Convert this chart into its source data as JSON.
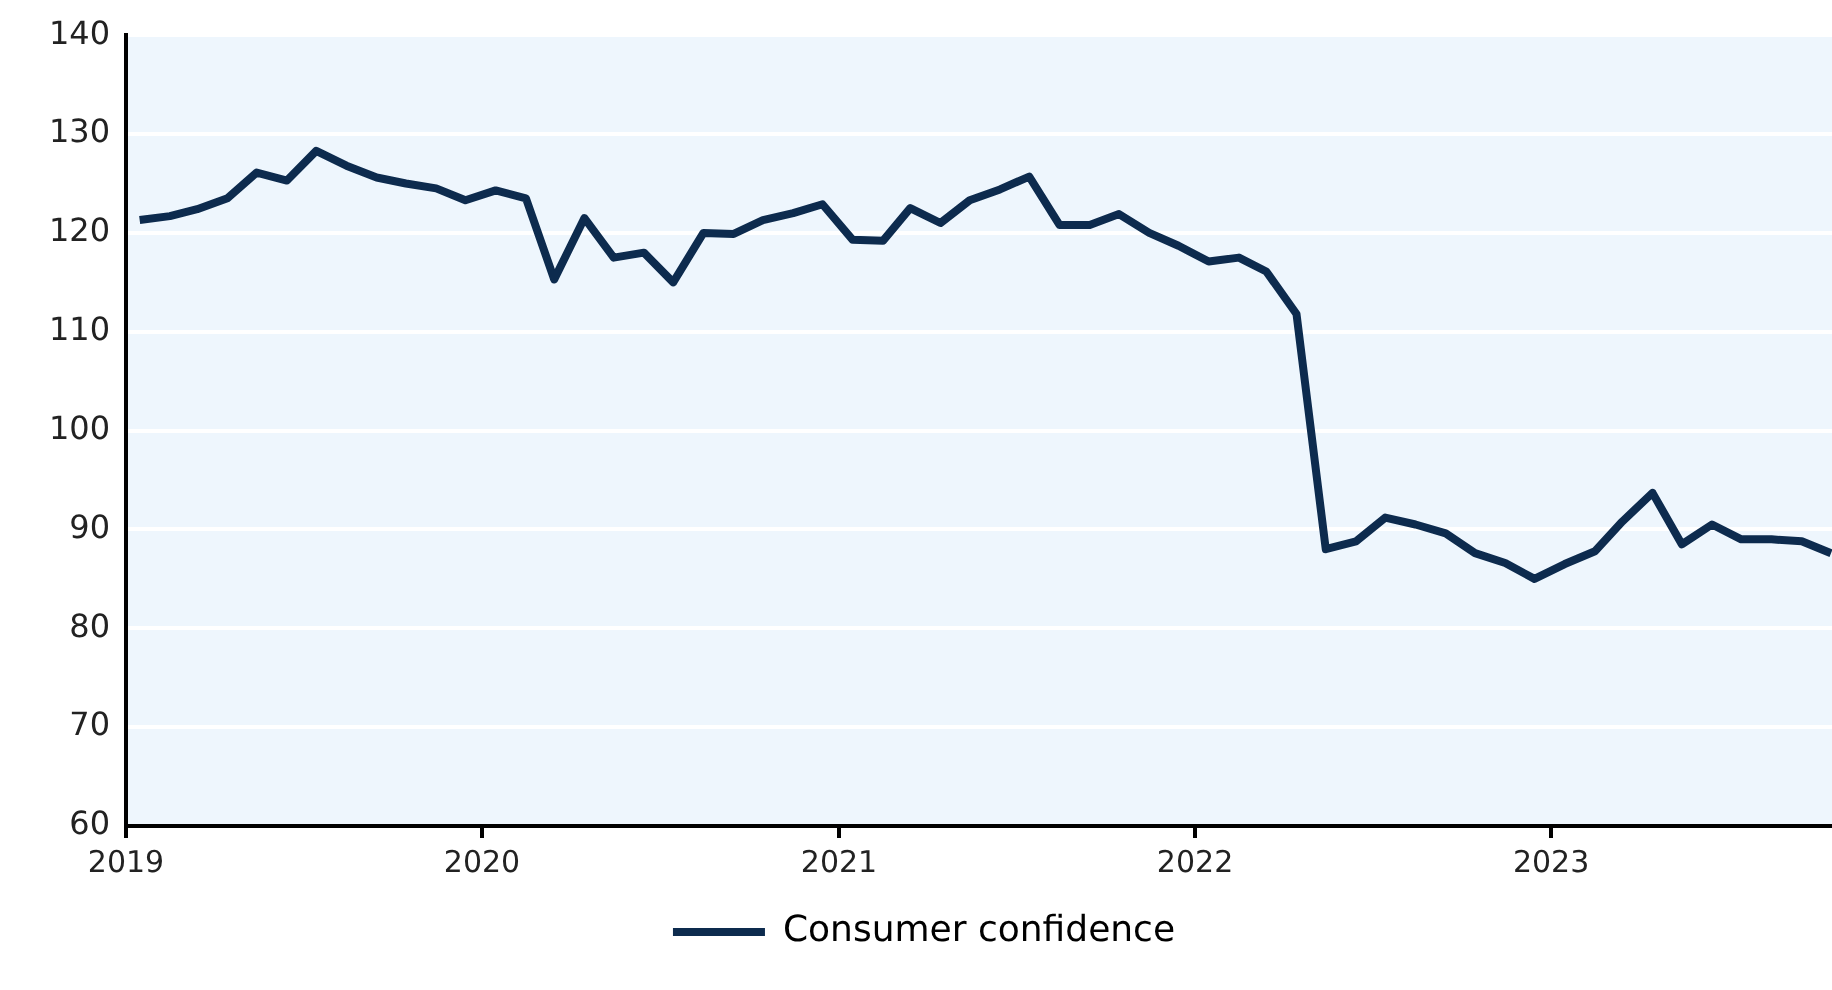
{
  "chart_data": {
    "type": "line",
    "x": [
      "2019-01-15",
      "2019-02-15",
      "2019-03-15",
      "2019-04-15",
      "2019-05-15",
      "2019-06-15",
      "2019-07-15",
      "2019-08-15",
      "2019-09-15",
      "2019-10-15",
      "2019-11-15",
      "2019-12-15",
      "2020-01-15",
      "2020-02-15",
      "2020-03-15",
      "2020-04-15",
      "2020-05-15",
      "2020-06-15",
      "2020-07-15",
      "2020-08-15",
      "2020-09-15",
      "2020-10-15",
      "2020-11-15",
      "2020-12-15",
      "2021-01-15",
      "2021-02-15",
      "2021-03-15",
      "2021-04-15",
      "2021-05-15",
      "2021-06-15",
      "2021-07-15",
      "2021-08-15",
      "2021-09-15",
      "2021-10-15",
      "2021-11-15",
      "2021-12-15",
      "2022-01-15",
      "2022-02-15",
      "2022-03-15",
      "2022-04-15",
      "2022-05-15",
      "2022-06-15",
      "2022-07-15",
      "2022-08-15",
      "2022-09-15",
      "2022-10-15",
      "2022-11-15",
      "2022-12-15",
      "2023-01-15",
      "2023-02-15",
      "2023-03-15",
      "2023-04-15",
      "2023-05-15",
      "2023-06-15",
      "2023-07-15",
      "2023-08-15",
      "2023-09-15",
      "2023-10-15"
    ],
    "series": [
      {
        "name": "Consumer confidence",
        "color": "#0d2b4e",
        "values": [
          121.3,
          121.7,
          122.4,
          123.5,
          126.1,
          125.3,
          128.3,
          126.8,
          125.6,
          125.0,
          124.5,
          123.3,
          124.3,
          123.5,
          115.3,
          121.5,
          117.5,
          118.0,
          115.0,
          120.0,
          119.9,
          121.3,
          122.0,
          122.9,
          119.3,
          119.2,
          122.5,
          121.0,
          123.3,
          124.4,
          125.7,
          120.8,
          120.8,
          121.9,
          120.0,
          118.7,
          117.1,
          117.5,
          116.1,
          111.8,
          88.0,
          88.8,
          91.2,
          90.5,
          89.6,
          87.6,
          86.6,
          85.0,
          86.5,
          87.8,
          90.8,
          93.7,
          88.5,
          90.5,
          89.0,
          89.0,
          88.8,
          87.6
        ]
      }
    ],
    "xlim": [
      "2019",
      "2023-10-16"
    ],
    "xticks": [
      "2019",
      "2020",
      "2021",
      "2022",
      "2023"
    ],
    "ylim": [
      60,
      140
    ],
    "yticks": [
      60,
      70,
      80,
      90,
      100,
      110,
      120,
      130,
      140
    ],
    "grid": "y",
    "legend": "bottom",
    "marker": "none",
    "line_style": "solid"
  }
}
